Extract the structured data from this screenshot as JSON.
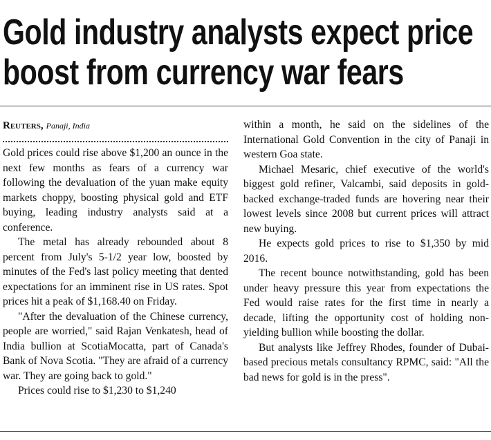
{
  "headline": [
    "Gold industry analysts expect price",
    "boost from currency war fears"
  ],
  "byline": {
    "source": "Reuters,",
    "location": "Panaji, India"
  },
  "columns": [
    {
      "paragraphs": [
        "Gold prices could rise above $1,200 an ounce in the next few months as fears of a currency war following the devaluation of the yuan make equity markets choppy, boosting physical gold and ETF buying, leading industry analysts said at a conference.",
        "The metal has already rebounded about 8 percent from July's 5-1/2 year low, boosted by minutes of the Fed's last policy meeting that dented expectations for an imminent rise in US rates. Spot prices hit a peak of $1,168.40 on Friday.",
        "\"After the devaluation of the Chinese currency, people are worried,\" said Rajan Venkatesh, head of India bullion at ScotiaMocatta, part of Canada's Bank of Nova Scotia. \"They are afraid of a currency war. They are going back to gold.\"",
        "Prices could rise to $1,230 to $1,240"
      ]
    },
    {
      "paragraphs": [
        "within a month, he said on the sidelines of the International Gold Convention in the city of Panaji in western Goa state.",
        "Michael Mesaric, chief executive of the world's biggest gold refiner, Valcambi, said deposits in gold-backed exchange-traded funds are hovering near their lowest levels since 2008 but current prices will attract new buying.",
        "He expects gold prices to rise to $1,350 by mid 2016.",
        "The recent bounce notwithstanding, gold has been under heavy pressure this year from expectations the Fed would raise rates for the first time in nearly a decade, lifting the opportunity cost of holding non-yielding bullion while boosting the dollar.",
        "But analysts like Jeffrey Rhodes, founder of Dubai-based precious metals consultancy RPMC, said: \"All the bad news for gold is in the press\"."
      ]
    }
  ]
}
